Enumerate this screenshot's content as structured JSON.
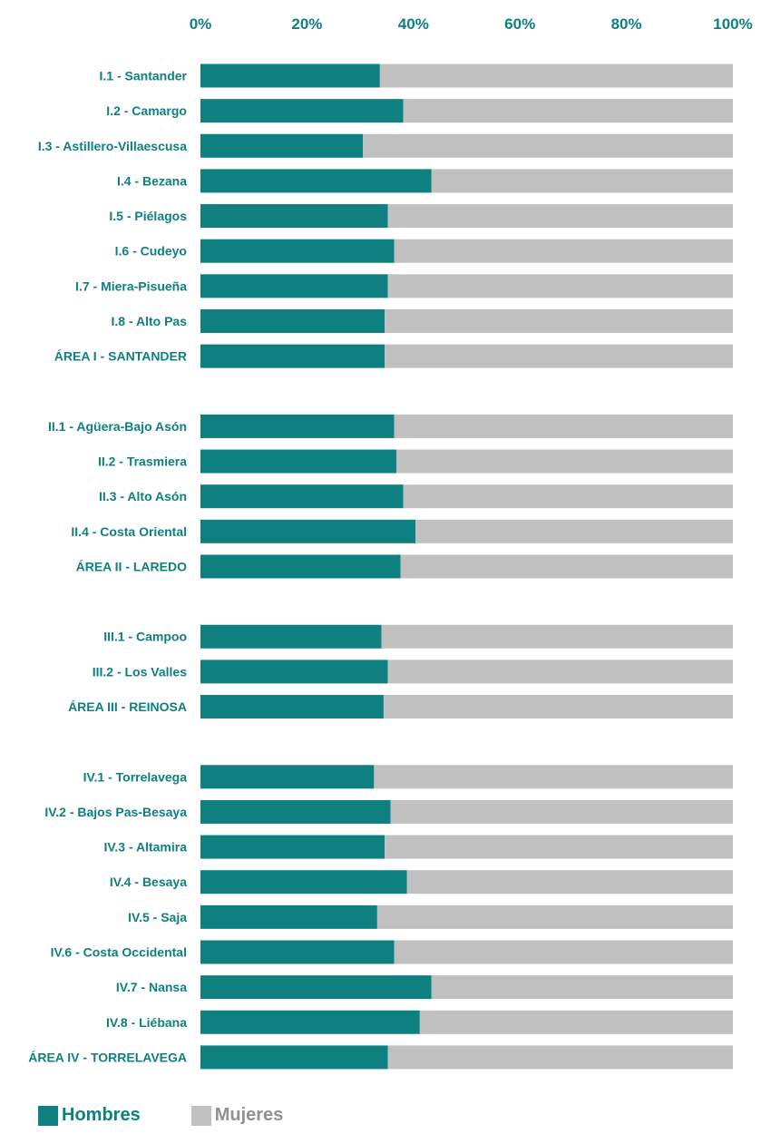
{
  "chart_data": {
    "type": "bar",
    "orientation": "horizontal",
    "stacked": "percent",
    "categories": [
      "I.1 - Santander",
      "I.2 - Camargo",
      "I.3 - Astillero-Villaescusa",
      "I.4 - Bezana",
      "I.5 - Piélagos",
      "I.6 - Cudeyo",
      "I.7 - Miera-Pisueña",
      "I.8 - Alto Pas",
      "ÁREA I - SANTANDER",
      "",
      "II.1 - Agüera-Bajo Asón",
      "II.2 - Trasmiera",
      "II.3 - Alto Asón",
      "II.4 - Costa Oriental",
      "ÁREA II - LAREDO",
      "",
      "III.1 - Campoo",
      "III.2 - Los Valles",
      "ÁREA III - REINOSA",
      "",
      "IV.1 - Torrelavega",
      "IV.2 - Bajos Pas-Besaya",
      "IV.3 - Altamira",
      "IV.4 - Besaya",
      "IV.5 - Saja",
      "IV.6 - Costa Occidental",
      "IV.7 - Nansa",
      "IV.8 - Liébana",
      "ÁREA IV - TORRELAVEGA"
    ],
    "series": [
      {
        "name": "Hombres",
        "color": "#0f8080",
        "values": [
          33.7,
          38.1,
          30.5,
          43.4,
          35.2,
          36.4,
          35.2,
          34.6,
          34.6,
          null,
          36.4,
          36.8,
          38.1,
          40.4,
          37.6,
          null,
          34.0,
          35.2,
          34.4,
          null,
          32.6,
          35.7,
          34.6,
          38.8,
          33.2,
          36.4,
          43.4,
          41.2,
          35.2
        ]
      },
      {
        "name": "Mujeres",
        "color": "#c0c0c0",
        "values": [
          66.3,
          61.9,
          69.5,
          56.6,
          64.8,
          63.6,
          64.8,
          65.4,
          65.4,
          null,
          63.6,
          63.2,
          61.9,
          59.6,
          62.4,
          null,
          66.0,
          64.8,
          65.6,
          null,
          67.4,
          64.3,
          65.4,
          61.2,
          66.8,
          63.6,
          56.6,
          58.8,
          64.8
        ]
      }
    ],
    "xlim": [
      0,
      100
    ],
    "x_ticks": [
      "0%",
      "20%",
      "40%",
      "60%",
      "80%",
      "100%"
    ],
    "axis_position": "top",
    "legend_position": "bottom-left",
    "grid": false,
    "title": "",
    "xlabel": "",
    "ylabel": ""
  }
}
